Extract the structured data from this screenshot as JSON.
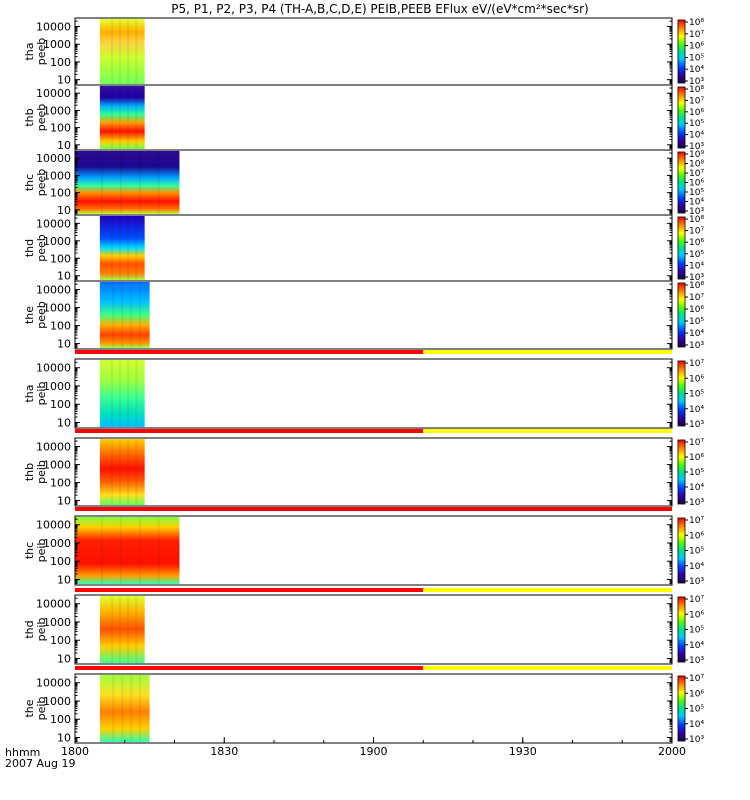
{
  "chart_data": {
    "type": "heatmap",
    "title": "P5, P1, P2, P3, P4 (TH-A,B,C,D,E) PEIB,PEEB EFlux eV/(eV*cm²*sec*sr)",
    "x_axis": {
      "range": [
        "1800",
        "2000"
      ],
      "ticks": [
        "1800",
        "1830",
        "1900",
        "1930",
        "2000"
      ],
      "label_left": "hhmm",
      "date_label": "2007 Aug 19"
    },
    "y_axis": {
      "scale": "log",
      "range": [
        5,
        30000
      ],
      "ticks": [
        "10",
        "100",
        "1000",
        "10000"
      ]
    },
    "panels": [
      {
        "id": "tha_peeb",
        "label1": "tha",
        "label2": "peeb",
        "data_start_hhmm": 1805,
        "data_end_hhmm": 1814,
        "style": "eA",
        "colorbar": {
          "min_exp": 3,
          "max_exp": 8,
          "labels": [
            "10³",
            "10⁴",
            "10⁵",
            "10⁶",
            "10⁷",
            "10⁸"
          ]
        }
      },
      {
        "id": "thb_peeb",
        "label1": "thb",
        "label2": "peeb",
        "data_start_hhmm": 1805,
        "data_end_hhmm": 1814,
        "style": "eB",
        "colorbar": {
          "min_exp": 3,
          "max_exp": 8,
          "labels": [
            "10³",
            "10⁴",
            "10⁵",
            "10⁶",
            "10⁷",
            "10⁸"
          ]
        }
      },
      {
        "id": "thc_peeb",
        "label1": "thc",
        "label2": "peeb",
        "data_start_hhmm": 1800,
        "data_end_hhmm": 1821,
        "style": "eC",
        "colorbar": {
          "min_exp": 3,
          "max_exp": 9,
          "labels": [
            "10³",
            "10⁴",
            "10⁵",
            "10⁶",
            "10⁷",
            "10⁸",
            "10⁹"
          ]
        }
      },
      {
        "id": "thd_peeb",
        "label1": "thd",
        "label2": "peeb",
        "data_start_hhmm": 1805,
        "data_end_hhmm": 1814,
        "style": "eD",
        "colorbar": {
          "min_exp": 3,
          "max_exp": 8,
          "labels": [
            "10³",
            "10⁴",
            "10⁵",
            "10⁶",
            "10⁷",
            "10⁸"
          ]
        }
      },
      {
        "id": "the_peeb",
        "label1": "the",
        "label2": "peeb",
        "data_start_hhmm": 1805,
        "data_end_hhmm": 1815,
        "style": "eE",
        "colorbar": {
          "min_exp": 3,
          "max_exp": 8,
          "labels": [
            "10³",
            "10⁴",
            "10⁵",
            "10⁶",
            "10⁷",
            "10⁸"
          ]
        }
      },
      {
        "id": "tha_peib",
        "label1": "tha",
        "label2": "peib",
        "data_start_hhmm": 1805,
        "data_end_hhmm": 1814,
        "style": "iA",
        "colorbar": {
          "min_exp": 3,
          "max_exp": 7,
          "labels": [
            "10³",
            "10⁴",
            "10⁵",
            "10⁶",
            "10⁷"
          ]
        }
      },
      {
        "id": "thb_peib",
        "label1": "thb",
        "label2": "peib",
        "data_start_hhmm": 1805,
        "data_end_hhmm": 1814,
        "style": "iB",
        "colorbar": {
          "min_exp": 3,
          "max_exp": 7,
          "labels": [
            "10³",
            "10⁴",
            "10⁵",
            "10⁶",
            "10⁷"
          ]
        }
      },
      {
        "id": "thc_peib",
        "label1": "thc",
        "label2": "peib",
        "data_start_hhmm": 1800,
        "data_end_hhmm": 1821,
        "style": "iC",
        "colorbar": {
          "min_exp": 3,
          "max_exp": 7,
          "labels": [
            "10³",
            "10⁴",
            "10⁵",
            "10⁶",
            "10⁷"
          ]
        }
      },
      {
        "id": "thd_peib",
        "label1": "thd",
        "label2": "peib",
        "data_start_hhmm": 1805,
        "data_end_hhmm": 1814,
        "style": "iD",
        "colorbar": {
          "min_exp": 3,
          "max_exp": 7,
          "labels": [
            "10³",
            "10⁴",
            "10⁵",
            "10⁶",
            "10⁷"
          ]
        }
      },
      {
        "id": "the_peib",
        "label1": "the",
        "label2": "peib",
        "data_start_hhmm": 1805,
        "data_end_hhmm": 1815,
        "style": "iE",
        "colorbar": {
          "min_exp": 3,
          "max_exp": 7,
          "labels": [
            "10³",
            "10⁴",
            "10⁵",
            "10⁶",
            "10⁷"
          ]
        }
      }
    ],
    "mode_bars": [
      {
        "before_panel": "tha_peib",
        "segments": [
          {
            "color": "#ff0000",
            "to_hhmm": 1910
          },
          {
            "color": "#ffff00",
            "to_hhmm": 2000
          }
        ]
      },
      {
        "before_panel": "thb_peib",
        "segments": [
          {
            "color": "#ff0000",
            "to_hhmm": 1910
          },
          {
            "color": "#ffff00",
            "to_hhmm": 2000
          }
        ]
      },
      {
        "before_panel": "thc_peib",
        "segments": [
          {
            "color": "#ff0000",
            "to_hhmm": 2000
          }
        ]
      },
      {
        "before_panel": "thd_peib",
        "segments": [
          {
            "color": "#ff0000",
            "to_hhmm": 1910
          },
          {
            "color": "#ffff00",
            "to_hhmm": 2000
          }
        ]
      },
      {
        "before_panel": "the_peib",
        "segments": [
          {
            "color": "#ff0000",
            "to_hhmm": 1910
          },
          {
            "color": "#ffff00",
            "to_hhmm": 2000
          }
        ]
      }
    ]
  }
}
